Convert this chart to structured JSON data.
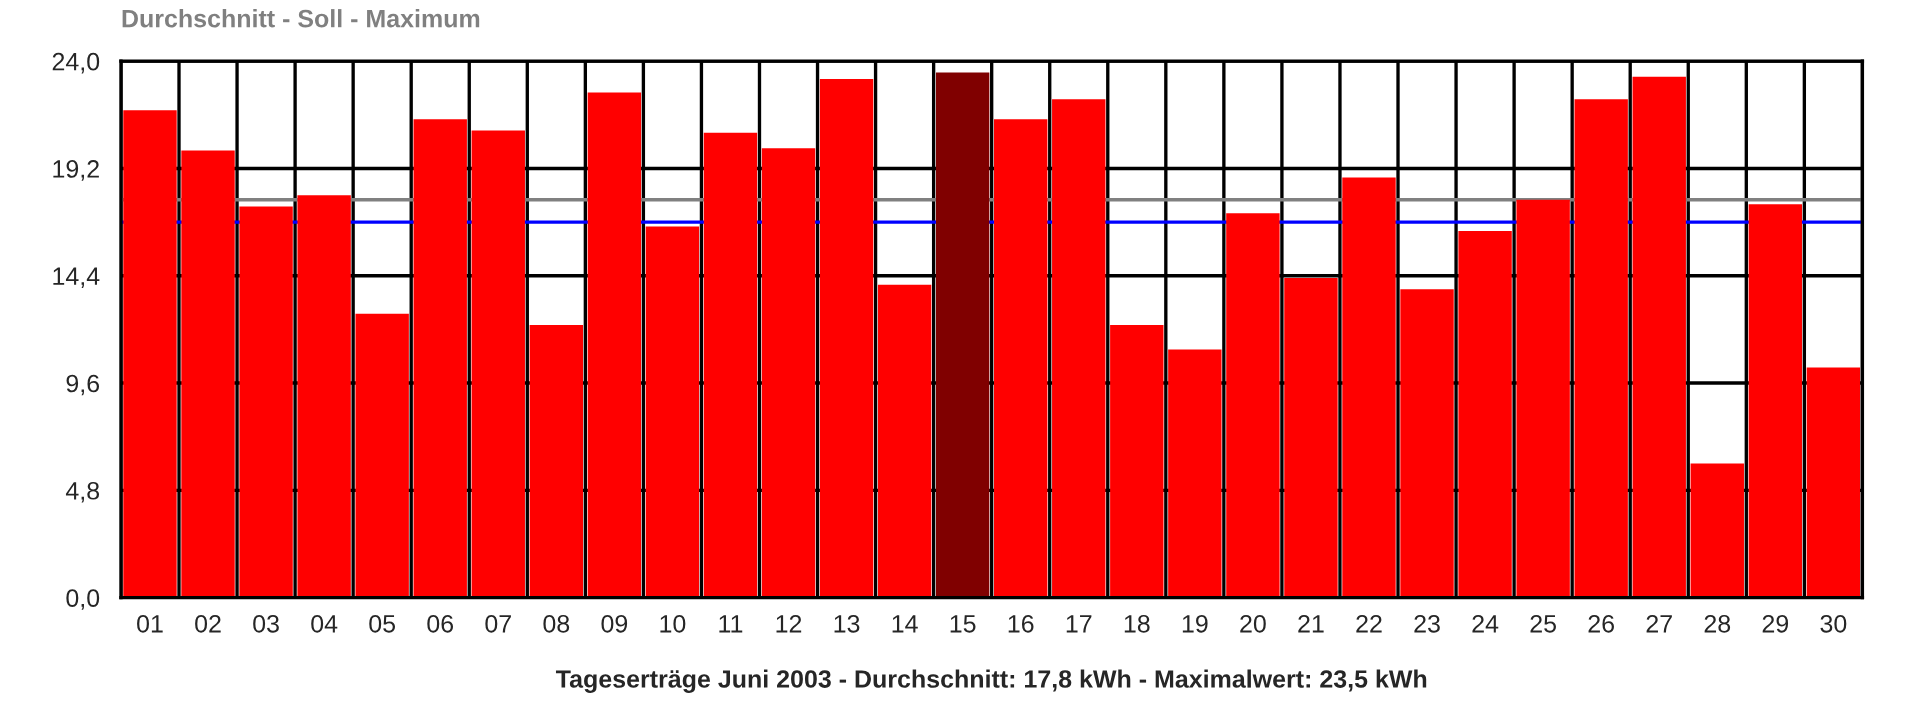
{
  "chart_data": {
    "type": "bar",
    "title": "Durchschnitt - Soll - Maximum",
    "xlabel": "Tageserträge Juni 2003 - Durchschnitt: 17,8 kWh - Maximalwert: 23,5 kWh",
    "categories": [
      "01",
      "02",
      "03",
      "04",
      "05",
      "06",
      "07",
      "08",
      "09",
      "10",
      "11",
      "12",
      "13",
      "14",
      "15",
      "16",
      "17",
      "18",
      "19",
      "20",
      "21",
      "22",
      "23",
      "24",
      "25",
      "26",
      "27",
      "28",
      "29",
      "30"
    ],
    "values": [
      21.8,
      20.0,
      17.5,
      18.0,
      12.7,
      21.4,
      20.9,
      12.2,
      22.6,
      16.6,
      20.8,
      20.1,
      23.2,
      14.0,
      23.5,
      21.4,
      22.3,
      12.2,
      11.1,
      17.2,
      14.3,
      18.8,
      13.8,
      16.4,
      17.8,
      22.3,
      23.3,
      6.0,
      17.6,
      10.3
    ],
    "colors": [
      "#ff0000",
      "#ff0000",
      "#ff0000",
      "#ff0000",
      "#ff0000",
      "#ff0000",
      "#ff0000",
      "#ff0000",
      "#ff0000",
      "#ff0000",
      "#ff0000",
      "#ff0000",
      "#ff0000",
      "#ff0000",
      "#800000",
      "#ff0000",
      "#ff0000",
      "#ff0000",
      "#ff0000",
      "#ff0000",
      "#ff0000",
      "#ff0000",
      "#ff0000",
      "#ff0000",
      "#ff0000",
      "#ff0000",
      "#ff0000",
      "#ff0000",
      "#ff0000",
      "#ff0000"
    ],
    "ylim": [
      0,
      24
    ],
    "yticks": [
      {
        "value": 0,
        "label": "0,0"
      },
      {
        "value": 4.8,
        "label": "4,8"
      },
      {
        "value": 9.6,
        "label": "9,6"
      },
      {
        "value": 14.4,
        "label": "14,4"
      },
      {
        "value": 19.2,
        "label": "19,2"
      },
      {
        "value": 24,
        "label": "24,0"
      }
    ],
    "ref_lines": [
      {
        "axis": "y",
        "value": 17.8,
        "color": "#808080"
      },
      {
        "axis": "y",
        "value": 16.8,
        "color": "#0000ff"
      }
    ],
    "grid": true
  }
}
